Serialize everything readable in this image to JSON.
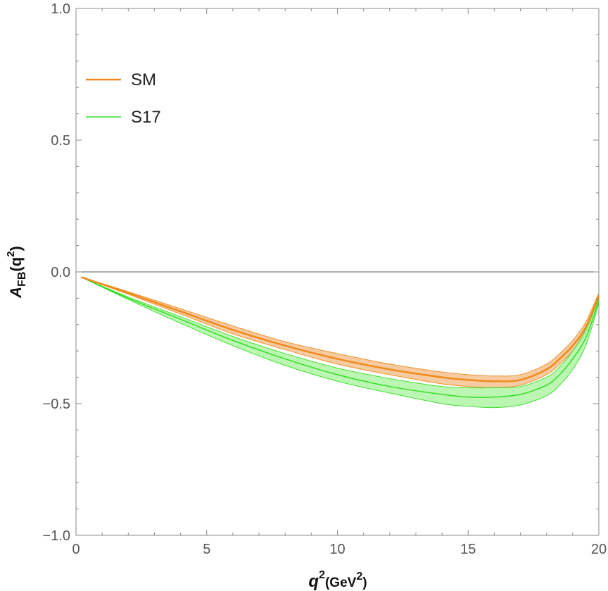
{
  "chart_data": {
    "type": "line",
    "xlabel": {
      "base": "q",
      "exponent": "2",
      "unit_base": "(GeV",
      "unit_exponent": "2",
      "unit_close": ")"
    },
    "ylabel": {
      "base": "A",
      "subscript": "FB",
      "arg_open": "(q",
      "arg_exponent": "2",
      "arg_close": ")"
    },
    "xlim": [
      0,
      20
    ],
    "ylim": [
      -1.0,
      1.0
    ],
    "x_ticks": [
      0,
      5,
      10,
      15,
      20
    ],
    "x_tick_labels": [
      "0",
      "5",
      "10",
      "15",
      "20"
    ],
    "y_ticks": [
      1.0,
      0.5,
      0.0,
      -0.5,
      -1.0
    ],
    "y_tick_labels": [
      "1.0",
      "0.5",
      "0.0",
      "−0.5",
      "−1.0"
    ],
    "zero_line": true,
    "grid": false,
    "legend_position": "top-left",
    "legend": [
      {
        "label": "SM",
        "color": "#f08a1c"
      },
      {
        "label": "S17",
        "color": "#33dd22"
      }
    ],
    "series": [
      {
        "name": "SM",
        "color": "#f08a1c",
        "band_fill": "#f6c290",
        "x": [
          0.2,
          2,
          4,
          6,
          8,
          10,
          12,
          14,
          15,
          16,
          17,
          18,
          18.5,
          19,
          19.5,
          20
        ],
        "y": [
          -0.02,
          -0.08,
          -0.15,
          -0.22,
          -0.28,
          -0.33,
          -0.37,
          -0.4,
          -0.41,
          -0.415,
          -0.41,
          -0.37,
          -0.33,
          -0.28,
          -0.21,
          -0.09
        ],
        "lower": [
          -0.02,
          -0.085,
          -0.16,
          -0.235,
          -0.295,
          -0.35,
          -0.39,
          -0.425,
          -0.435,
          -0.44,
          -0.43,
          -0.39,
          -0.35,
          -0.3,
          -0.23,
          -0.1
        ],
        "upper": [
          -0.02,
          -0.075,
          -0.14,
          -0.205,
          -0.265,
          -0.31,
          -0.35,
          -0.38,
          -0.39,
          -0.395,
          -0.39,
          -0.35,
          -0.31,
          -0.26,
          -0.19,
          -0.08
        ]
      },
      {
        "name": "S17",
        "color": "#33dd22",
        "band_fill": "#b0f5a6",
        "x": [
          0.2,
          2,
          4,
          6,
          8,
          10,
          12,
          14,
          15,
          16,
          17,
          18,
          18.5,
          19,
          19.5,
          20
        ],
        "y": [
          -0.02,
          -0.1,
          -0.18,
          -0.26,
          -0.33,
          -0.39,
          -0.435,
          -0.465,
          -0.475,
          -0.475,
          -0.465,
          -0.43,
          -0.39,
          -0.33,
          -0.25,
          -0.11
        ],
        "lower": [
          -0.02,
          -0.105,
          -0.195,
          -0.28,
          -0.355,
          -0.415,
          -0.46,
          -0.5,
          -0.51,
          -0.515,
          -0.505,
          -0.47,
          -0.43,
          -0.37,
          -0.28,
          -0.12
        ],
        "upper": [
          -0.02,
          -0.095,
          -0.17,
          -0.245,
          -0.31,
          -0.365,
          -0.405,
          -0.435,
          -0.44,
          -0.44,
          -0.435,
          -0.4,
          -0.36,
          -0.3,
          -0.22,
          -0.1
        ]
      }
    ]
  }
}
